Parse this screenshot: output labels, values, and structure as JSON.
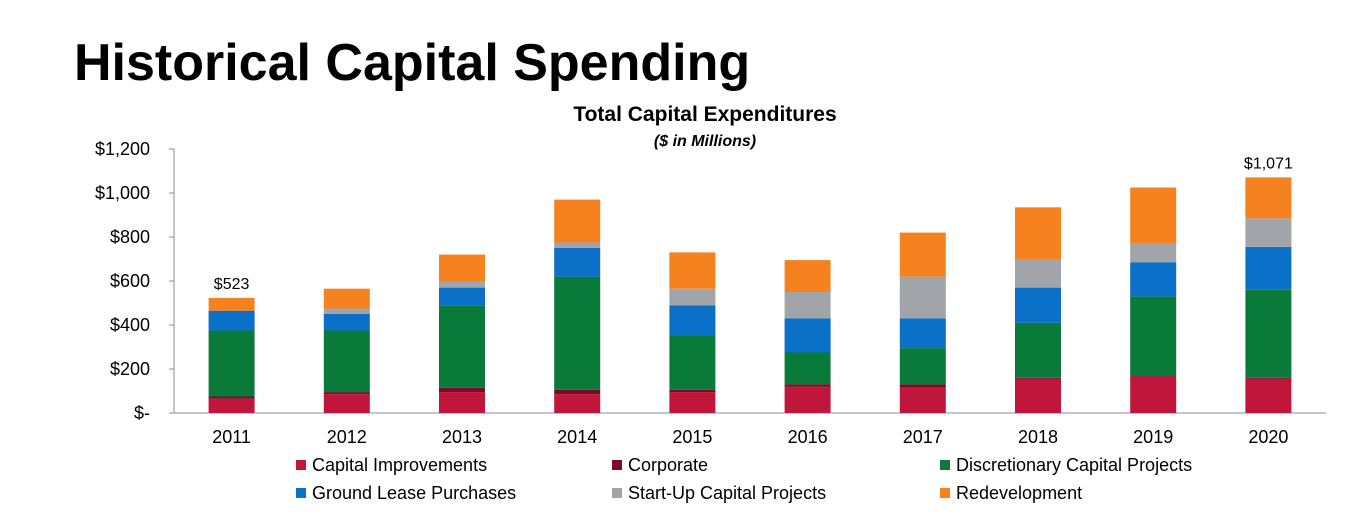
{
  "page": {
    "title": "Historical Capital Spending"
  },
  "chart_data": {
    "type": "bar",
    "stacked": true,
    "title": "Total Capital Expenditures",
    "subtitle": "($ in Millions)",
    "xlabel": "",
    "ylabel": "",
    "ylim": [
      0,
      1200
    ],
    "yticks": [
      0,
      200,
      400,
      600,
      800,
      1000,
      1200
    ],
    "ytick_labels": [
      "$-",
      "$200",
      "$400",
      "$600",
      "$800",
      "$1,000",
      "$1,200"
    ],
    "grid": false,
    "legend_position": "bottom",
    "categories": [
      "2011",
      "2012",
      "2013",
      "2014",
      "2015",
      "2016",
      "2017",
      "2018",
      "2019",
      "2020"
    ],
    "series": [
      {
        "name": "Capital Improvements",
        "color": "#c0163c",
        "values": [
          65,
          85,
          95,
          85,
          95,
          120,
          115,
          155,
          165,
          155
        ]
      },
      {
        "name": "Corporate",
        "color": "#7a0a25",
        "values": [
          10,
          10,
          20,
          20,
          10,
          10,
          15,
          5,
          5,
          5
        ]
      },
      {
        "name": "Discretionary Capital Projects",
        "color": "#0a7a3a",
        "values": [
          300,
          280,
          375,
          515,
          245,
          145,
          165,
          250,
          360,
          400
        ]
      },
      {
        "name": "Ground Lease Purchases",
        "color": "#0a70c8",
        "values": [
          90,
          75,
          80,
          130,
          140,
          155,
          135,
          160,
          155,
          195
        ]
      },
      {
        "name": "Start-Up Capital Projects",
        "color": "#a1a5a9",
        "values": [
          0,
          25,
          30,
          25,
          75,
          120,
          190,
          130,
          85,
          130
        ]
      },
      {
        "name": "Redevelopment",
        "color": "#f5821f",
        "values": [
          58,
          90,
          120,
          195,
          165,
          145,
          200,
          235,
          255,
          186
        ]
      }
    ],
    "annotations": [
      {
        "category": "2011",
        "text": "$523"
      },
      {
        "category": "2020",
        "text": "$1,071"
      }
    ]
  }
}
